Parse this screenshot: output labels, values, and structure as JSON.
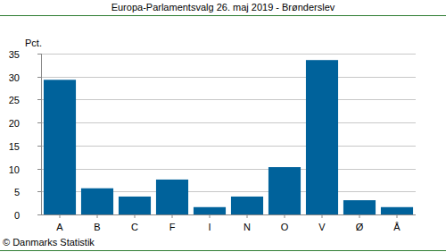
{
  "chart_data": {
    "type": "bar",
    "title": "Europa-Parlamentsvalg 26. maj 2019 - Brønderslev",
    "ylabel": "Pct.",
    "source": "© Danmarks Statistik",
    "categories": [
      "A",
      "B",
      "C",
      "F",
      "I",
      "N",
      "O",
      "V",
      "Ø",
      "Å"
    ],
    "values": [
      29.3,
      5.7,
      3.9,
      7.6,
      1.6,
      3.9,
      10.3,
      33.6,
      3.1,
      1.6
    ],
    "color": "#00629b",
    "ylim": [
      0,
      35
    ],
    "yticks": [
      0,
      5,
      10,
      15,
      20,
      25,
      30,
      35
    ],
    "grid": true
  }
}
